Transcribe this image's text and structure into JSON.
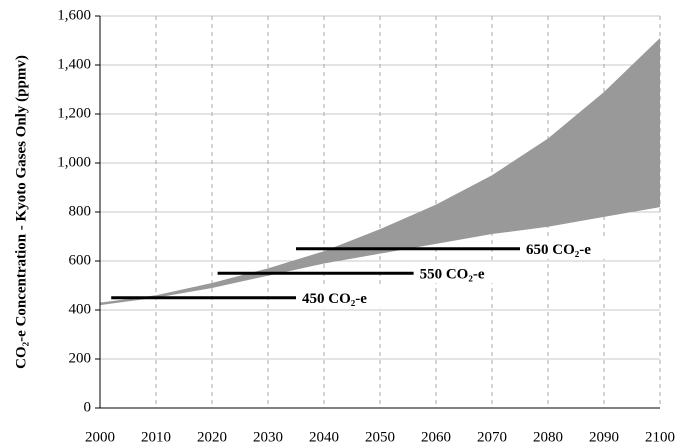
{
  "chart_data": {
    "type": "band",
    "y_label": "CO₂-e Concentration - Kyoto Gases Only (ppmv)",
    "x": [
      2000,
      2010,
      2020,
      2030,
      2040,
      2050,
      2060,
      2070,
      2080,
      2090,
      2100
    ],
    "series": [
      {
        "name": "Lower",
        "color": "#999999",
        "values": [
          420,
          450,
          490,
          540,
          590,
          630,
          670,
          710,
          740,
          780,
          820
        ]
      },
      {
        "name": "Upper",
        "color": "#999999",
        "values": [
          430,
          460,
          510,
          570,
          640,
          730,
          830,
          950,
          1100,
          1290,
          1510
        ]
      }
    ],
    "reference_lines": [
      {
        "value": 450,
        "x": [
          2002,
          2035
        ],
        "label": "450 CO₂-e"
      },
      {
        "value": 550,
        "x": [
          2021,
          2056
        ],
        "label": "550 CO₂-e"
      },
      {
        "value": 650,
        "x": [
          2035,
          2075
        ],
        "label": "650 CO₂-e"
      }
    ],
    "xlim": [
      2000,
      2100
    ],
    "xticks": [
      2000,
      2010,
      2020,
      2030,
      2040,
      2050,
      2060,
      2070,
      2080,
      2090,
      2100
    ],
    "ylim": [
      0,
      1600
    ],
    "yticks": [
      0,
      200,
      400,
      600,
      800,
      {
        "value": 1000,
        "label": "1,000"
      },
      {
        "value": 1200,
        "label": "1,200"
      },
      {
        "value": 1400,
        "label": "1,400"
      },
      {
        "value": 1600,
        "label": "1,600"
      }
    ],
    "grid": true
  }
}
